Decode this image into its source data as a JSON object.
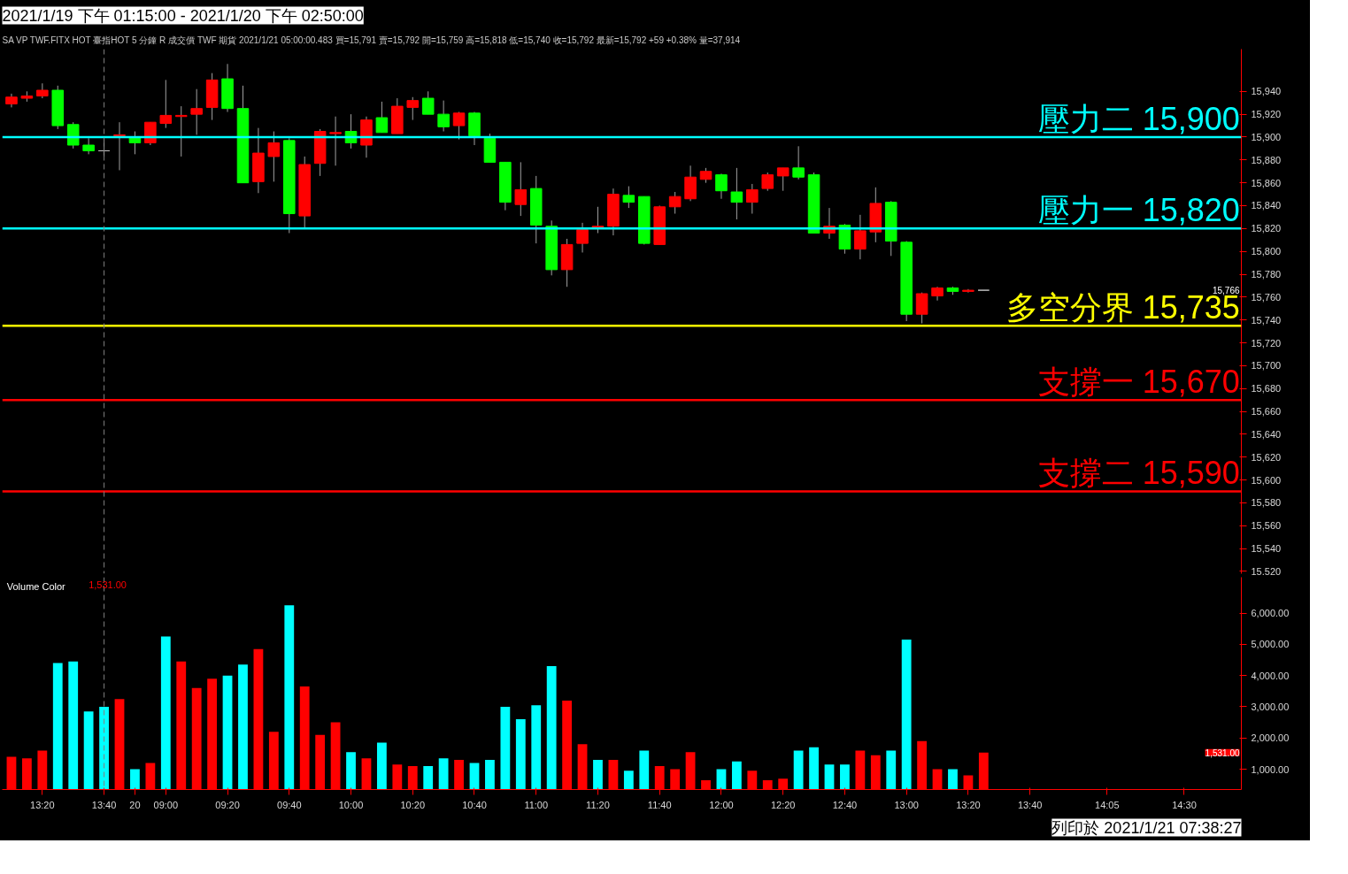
{
  "chart_data": [
    {
      "type": "candlestick",
      "title": "2021/1/19 下午 01:15:00 - 2021/1/20 下午 02:50:00",
      "subtitle": "SA  VP  TWF.FITX HOT  臺指HOT 5 分鐘  R  成交價  TWF  期貨  2021/1/21  05:00:00.483  買=15,791  賣=15,792  開=15,759  高=15,818  低=15,740  收=15,792  最新=15,792  +59  +0.38%  量=37,914",
      "categories": [
        null,
        null,
        "13:20",
        null,
        null,
        null,
        "13:40",
        null,
        "20",
        null,
        "09:00",
        null,
        null,
        null,
        "09:20",
        null,
        null,
        null,
        "09:40",
        null,
        null,
        null,
        "10:00",
        null,
        null,
        null,
        "10:20",
        null,
        null,
        null,
        "10:40",
        null,
        null,
        null,
        "11:00",
        null,
        null,
        null,
        "11:20",
        null,
        null,
        null,
        "11:40",
        null,
        null,
        null,
        "12:00",
        null,
        null,
        null,
        "12:20",
        null,
        null,
        null,
        "12:40",
        null,
        null,
        null,
        "13:00",
        null,
        null,
        null,
        "13:20",
        null,
        null,
        null,
        "13:40",
        null,
        null,
        null,
        null,
        "14:05",
        null,
        null,
        null,
        null,
        "14:30",
        null,
        null,
        null
      ],
      "tick_labels": "y",
      "ohlc": [
        [
          15929,
          15938,
          15926,
          15935
        ],
        [
          15934,
          15940,
          15931,
          15936
        ],
        [
          15936,
          15947,
          15934,
          15941
        ],
        [
          15941,
          15945,
          15907,
          15910
        ],
        [
          15911,
          15913,
          15890,
          15893
        ],
        [
          15893,
          15899,
          15885,
          15888
        ],
        [
          15888,
          15898,
          15883,
          15888
        ],
        [
          15901,
          15913,
          15871,
          15902
        ],
        [
          15900,
          15905,
          15885,
          15895
        ],
        [
          15895,
          15913,
          15893,
          15913
        ],
        [
          15912,
          15950,
          15908,
          15919
        ],
        [
          15918,
          15927,
          15883,
          15919
        ],
        [
          15920,
          15942,
          15902,
          15925
        ],
        [
          15926,
          15956,
          15915,
          15950
        ],
        [
          15951,
          15964,
          15922,
          15925
        ],
        [
          15925,
          15945,
          15860,
          15860
        ],
        [
          15861,
          15908,
          15851,
          15886
        ],
        [
          15883,
          15905,
          15861,
          15895
        ],
        [
          15897,
          15899,
          15816,
          15833
        ],
        [
          15831,
          15883,
          15820,
          15876
        ],
        [
          15877,
          15907,
          15866,
          15905
        ],
        [
          15903,
          15918,
          15875,
          15904
        ],
        [
          15905,
          15920,
          15890,
          15895
        ],
        [
          15893,
          15918,
          15882,
          15915
        ],
        [
          15917,
          15931,
          15904,
          15904
        ],
        [
          15903,
          15934,
          15903,
          15927
        ],
        [
          15926,
          15935,
          15915,
          15932
        ],
        [
          15934,
          15940,
          15920,
          15920
        ],
        [
          15920,
          15932,
          15905,
          15909
        ],
        [
          15910,
          15922,
          15898,
          15921
        ],
        [
          15921,
          15922,
          15893,
          15901
        ],
        [
          15899,
          15903,
          15878,
          15878
        ],
        [
          15878,
          15878,
          15836,
          15843
        ],
        [
          15841,
          15878,
          15831,
          15854
        ],
        [
          15855,
          15866,
          15807,
          15823
        ],
        [
          15822,
          15827,
          15779,
          15784
        ],
        [
          15784,
          15811,
          15769,
          15806
        ],
        [
          15807,
          15825,
          15799,
          15819
        ],
        [
          15821,
          15839,
          15816,
          15822
        ],
        [
          15822,
          15855,
          15814,
          15850
        ],
        [
          15849,
          15857,
          15838,
          15843
        ],
        [
          15848,
          15848,
          15806,
          15807
        ],
        [
          15806,
          15840,
          15806,
          15839
        ],
        [
          15839,
          15852,
          15833,
          15848
        ],
        [
          15846,
          15875,
          15844,
          15865
        ],
        [
          15863,
          15873,
          15860,
          15870
        ],
        [
          15867,
          15868,
          15846,
          15853
        ],
        [
          15852,
          15873,
          15828,
          15843
        ],
        [
          15843,
          15859,
          15833,
          15854
        ],
        [
          15855,
          15869,
          15853,
          15867
        ],
        [
          15866,
          15873,
          15853,
          15873
        ],
        [
          15873,
          15892,
          15863,
          15865
        ],
        [
          15867,
          15869,
          15816,
          15816
        ],
        [
          15816,
          15838,
          15811,
          15822
        ],
        [
          15823,
          15824,
          15798,
          15802
        ],
        [
          15802,
          15832,
          15793,
          15818
        ],
        [
          15817,
          15856,
          15808,
          15842
        ],
        [
          15843,
          15844,
          15796,
          15809
        ],
        [
          15808,
          15809,
          15739,
          15745
        ],
        [
          15745,
          15764,
          15737,
          15763
        ],
        [
          15761,
          15769,
          15757,
          15768
        ],
        [
          15768,
          15769,
          15762,
          15765
        ],
        [
          15765,
          15767,
          15764,
          15766
        ],
        [
          15766,
          15766,
          15766,
          15766
        ],
        null,
        null,
        null,
        null,
        null,
        null,
        null,
        null,
        null,
        null,
        null,
        null,
        null,
        null,
        null,
        null
      ],
      "colors": [
        "#ff0000",
        "#ff0000",
        "#ff0000",
        "#00ff00",
        "#00ff00",
        "#00ff00",
        "#c0c0c0",
        "#ff0000",
        "#00ff00",
        "#ff0000",
        "#ff0000",
        "#ff0000",
        "#ff0000",
        "#ff0000",
        "#00ff00",
        "#00ff00",
        "#ff0000",
        "#ff0000",
        "#00ff00",
        "#ff0000",
        "#ff0000",
        "#ff0000",
        "#00ff00",
        "#ff0000",
        "#00ff00",
        "#ff0000",
        "#ff0000",
        "#00ff00",
        "#00ff00",
        "#ff0000",
        "#00ff00",
        "#00ff00",
        "#00ff00",
        "#ff0000",
        "#00ff00",
        "#00ff00",
        "#ff0000",
        "#ff0000",
        "#ff0000",
        "#ff0000",
        "#00ff00",
        "#00ff00",
        "#ff0000",
        "#ff0000",
        "#ff0000",
        "#ff0000",
        "#00ff00",
        "#00ff00",
        "#ff0000",
        "#ff0000",
        "#ff0000",
        "#00ff00",
        "#00ff00",
        "#ff0000",
        "#00ff00",
        "#ff0000",
        "#ff0000",
        "#00ff00",
        "#00ff00",
        "#ff0000",
        "#ff0000",
        "#00ff00",
        "#ff0000",
        "#c0c0c0",
        null,
        null,
        null,
        null,
        null,
        null,
        null,
        null,
        null,
        null,
        null,
        null,
        null,
        null,
        null,
        null
      ],
      "ylim": [
        15518,
        15977
      ],
      "yticks": [
        {
          "value": 15520,
          "label": "15,520"
        },
        {
          "value": 15540,
          "label": "15,540"
        },
        {
          "value": 15560,
          "label": "15,560"
        },
        {
          "value": 15580,
          "label": "15,580"
        },
        {
          "value": 15600,
          "label": "15,600"
        },
        {
          "value": 15620,
          "label": "15,620"
        },
        {
          "value": 15640,
          "label": "15,640"
        },
        {
          "value": 15660,
          "label": "15,660"
        },
        {
          "value": 15680,
          "label": "15,680"
        },
        {
          "value": 15700,
          "label": "15,700"
        },
        {
          "value": 15720,
          "label": "15,720"
        },
        {
          "value": 15740,
          "label": "15,740"
        },
        {
          "value": 15760,
          "label": "15,760"
        },
        {
          "value": 15780,
          "label": "15,780"
        },
        {
          "value": 15800,
          "label": "15,800"
        },
        {
          "value": 15820,
          "label": "15,820"
        },
        {
          "value": 15840,
          "label": "15,840"
        },
        {
          "value": 15860,
          "label": "15,860"
        },
        {
          "value": 15880,
          "label": "15,880"
        },
        {
          "value": 15900,
          "label": "15,900"
        },
        {
          "value": 15920,
          "label": "15,920"
        },
        {
          "value": 15940,
          "label": "15,940"
        }
      ],
      "ref_lines": [
        {
          "axis": "y",
          "value": 15900,
          "label": "壓力二 15,900",
          "color": "#00ffff"
        },
        {
          "axis": "y",
          "value": 15820,
          "label": "壓力一 15,820",
          "color": "#00ffff"
        },
        {
          "axis": "y",
          "value": 15735,
          "label": "多空分界 15,735",
          "color": "#ffff00"
        },
        {
          "axis": "y",
          "value": 15670,
          "label": "支撐一 15,670",
          "color": "#ff0000"
        },
        {
          "axis": "y",
          "value": 15590,
          "label": "支撐二 15,590",
          "color": "#ff0000"
        },
        {
          "axis": "x",
          "value": "13:40",
          "color": "#808080",
          "line_style": "dashed"
        }
      ],
      "annotations": [
        "15,766"
      ]
    },
    {
      "type": "bar",
      "title": "Volume Color",
      "categories": [
        null,
        null,
        "13:20",
        null,
        null,
        null,
        "13:40",
        null,
        "20",
        null,
        "09:00",
        null,
        null,
        null,
        "09:20",
        null,
        null,
        null,
        "09:40",
        null,
        null,
        null,
        "10:00",
        null,
        null,
        null,
        "10:20",
        null,
        null,
        null,
        "10:40",
        null,
        null,
        null,
        "11:00",
        null,
        null,
        null,
        "11:20",
        null,
        null,
        null,
        "11:40",
        null,
        null,
        null,
        "12:00",
        null,
        null,
        null,
        "12:20",
        null,
        null,
        null,
        "12:40",
        null,
        null,
        null,
        "13:00",
        null,
        null,
        null,
        "13:20",
        null,
        null,
        null,
        "13:40",
        null,
        null,
        null,
        null,
        "14:05",
        null,
        null,
        null,
        null,
        "14:30",
        null,
        null,
        null
      ],
      "values": [
        1400,
        1350,
        1600,
        4400,
        4450,
        2850,
        3000,
        3250,
        1000,
        1200,
        5250,
        4450,
        3600,
        3900,
        4000,
        4350,
        4850,
        2200,
        6250,
        3650,
        2100,
        2500,
        1550,
        1350,
        1850,
        1150,
        1100,
        1100,
        1350,
        1300,
        1200,
        1300,
        3000,
        2600,
        3050,
        4300,
        3200,
        1800,
        1300,
        1300,
        950,
        1600,
        1100,
        1000,
        1550,
        650,
        1000,
        1250,
        950,
        650,
        700,
        1600,
        1700,
        1150,
        1150,
        1600,
        1450,
        1600,
        5150,
        1900,
        1000,
        1000,
        800,
        1531,
        null,
        null,
        null,
        null,
        null,
        null,
        null,
        null,
        null,
        null,
        null,
        null,
        null,
        null,
        null,
        null
      ],
      "colors": [
        "#ff0000",
        "#ff0000",
        "#ff0000",
        "#00ffff",
        "#00ffff",
        "#00ffff",
        "#00ffff",
        "#ff0000",
        "#00ffff",
        "#ff0000",
        "#00ffff",
        "#ff0000",
        "#ff0000",
        "#ff0000",
        "#00ffff",
        "#00ffff",
        "#ff0000",
        "#ff0000",
        "#00ffff",
        "#ff0000",
        "#ff0000",
        "#ff0000",
        "#00ffff",
        "#ff0000",
        "#00ffff",
        "#ff0000",
        "#ff0000",
        "#00ffff",
        "#00ffff",
        "#ff0000",
        "#00ffff",
        "#00ffff",
        "#00ffff",
        "#00ffff",
        "#00ffff",
        "#00ffff",
        "#ff0000",
        "#ff0000",
        "#00ffff",
        "#ff0000",
        "#00ffff",
        "#00ffff",
        "#ff0000",
        "#ff0000",
        "#ff0000",
        "#ff0000",
        "#00ffff",
        "#00ffff",
        "#ff0000",
        "#ff0000",
        "#ff0000",
        "#00ffff",
        "#00ffff",
        "#00ffff",
        "#00ffff",
        "#ff0000",
        "#ff0000",
        "#00ffff",
        "#00ffff",
        "#ff0000",
        "#ff0000",
        "#00ffff",
        "#ff0000",
        "#ff0000",
        null,
        null,
        null,
        null,
        null,
        null,
        null,
        null,
        null,
        null,
        null,
        null,
        null,
        null,
        null,
        null
      ],
      "ylim": [
        350,
        7150
      ],
      "yticks": [
        {
          "value": 1000,
          "label": "1,000.00"
        },
        {
          "value": 2000,
          "label": "2,000.00"
        },
        {
          "value": 3000,
          "label": "3,000.00"
        },
        {
          "value": 4000,
          "label": "4,000.00"
        },
        {
          "value": 5000,
          "label": "5,000.00"
        },
        {
          "value": 6000,
          "label": "6,000.00"
        }
      ],
      "ref_lines": [
        {
          "axis": "x",
          "value": "13:40",
          "color": "#808080",
          "line_style": "dashed"
        }
      ],
      "annotations": [
        "1,531.00",
        "1,531.00",
        "列印於 2021/1/21 07:38:27"
      ]
    }
  ]
}
